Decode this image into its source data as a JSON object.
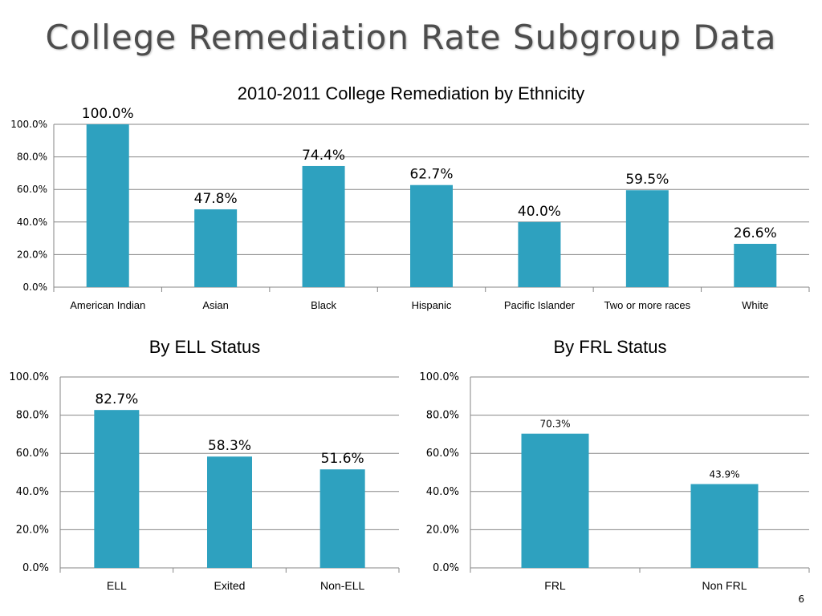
{
  "slide": {
    "title": "College Remediation Rate Subgroup Data",
    "page_number": "6"
  },
  "colors": {
    "bar": "#2ea1bf",
    "grid": "#868686",
    "axis_text": "#000000"
  },
  "chart_data": [
    {
      "type": "bar",
      "title": "2010-2011 College Remediation by Ethnicity",
      "categories": [
        "American Indian",
        "Asian",
        "Black",
        "Hispanic",
        "Pacific Islander",
        "Two or more races",
        "White"
      ],
      "values": [
        100.0,
        47.8,
        74.4,
        62.7,
        40.0,
        59.5,
        26.6
      ],
      "data_labels": [
        "100.0%",
        "47.8%",
        "74.4%",
        "62.7%",
        "40.0%",
        "59.5%",
        "26.6%"
      ],
      "yticks": [
        "0.0%",
        "20.0%",
        "40.0%",
        "60.0%",
        "80.0%",
        "100.0%"
      ],
      "ylim": [
        0,
        100
      ],
      "grid": true
    },
    {
      "type": "bar",
      "title": "By ELL Status",
      "categories": [
        "ELL",
        "Exited",
        "Non-ELL"
      ],
      "values": [
        82.7,
        58.3,
        51.6
      ],
      "data_labels": [
        "82.7%",
        "58.3%",
        "51.6%"
      ],
      "yticks": [
        "0.0%",
        "20.0%",
        "40.0%",
        "60.0%",
        "80.0%",
        "100.0%"
      ],
      "ylim": [
        0,
        100
      ],
      "grid": true
    },
    {
      "type": "bar",
      "title": "By FRL Status",
      "categories": [
        "FRL",
        "Non FRL"
      ],
      "values": [
        70.3,
        43.9
      ],
      "data_labels": [
        "70.3%",
        "43.9%"
      ],
      "yticks": [
        "0.0%",
        "20.0%",
        "40.0%",
        "60.0%",
        "80.0%",
        "100.0%"
      ],
      "ylim": [
        0,
        100
      ],
      "grid": true
    }
  ]
}
